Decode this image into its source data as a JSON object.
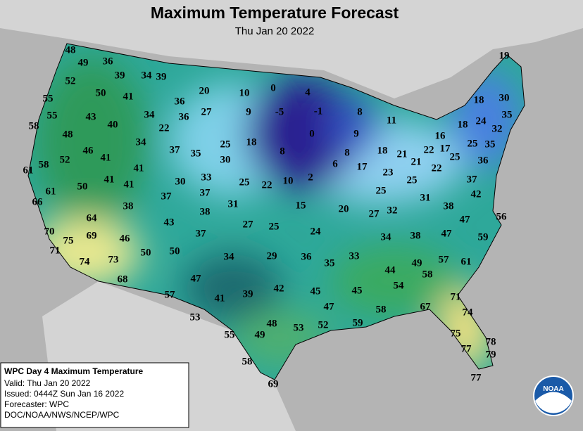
{
  "header": {
    "title": "Maximum Temperature Forecast",
    "subtitle": "Thu Jan 20 2022"
  },
  "temperatures": [
    48,
    49,
    36,
    52,
    39,
    34,
    39,
    20,
    10,
    0,
    4,
    55,
    50,
    41,
    36,
    18,
    30,
    19,
    55,
    43,
    34,
    36,
    27,
    9,
    -5,
    -1,
    8,
    11,
    35,
    58,
    40,
    22,
    18,
    24,
    32,
    48,
    16,
    0,
    9,
    34,
    25,
    18,
    17,
    25,
    35,
    46,
    37,
    35,
    8,
    8,
    18,
    21,
    22,
    25,
    52,
    41,
    30,
    36,
    58,
    61,
    41,
    6,
    17,
    21,
    22,
    23,
    41,
    33,
    25,
    22,
    10,
    2,
    50,
    41,
    30,
    25,
    37,
    61,
    37,
    25,
    42,
    66,
    37,
    31,
    15,
    20,
    31,
    38,
    38,
    27,
    32,
    38,
    64,
    43,
    47,
    56,
    27,
    25,
    24,
    70,
    69,
    37,
    34,
    38,
    47,
    59,
    75,
    46,
    71,
    50,
    50,
    34,
    29,
    36,
    35,
    33,
    57,
    61,
    74,
    73,
    44,
    49,
    58,
    68,
    47,
    54,
    57,
    41,
    39,
    42,
    45,
    45,
    71,
    67,
    47,
    58,
    74,
    53,
    59,
    48,
    53,
    52,
    55,
    49,
    75,
    78,
    77,
    79,
    58,
    77,
    69
  ],
  "info": {
    "title": "WPC Day 4 Maximum Temperature",
    "lines": [
      "Valid: Thu Jan 20 2022",
      "Issued: 0444Z Sun Jan 16 2022",
      "Forecaster: WPC",
      "DOC/NOAA/NWS/NCEP/WPC"
    ]
  },
  "logo": "NOAA"
}
